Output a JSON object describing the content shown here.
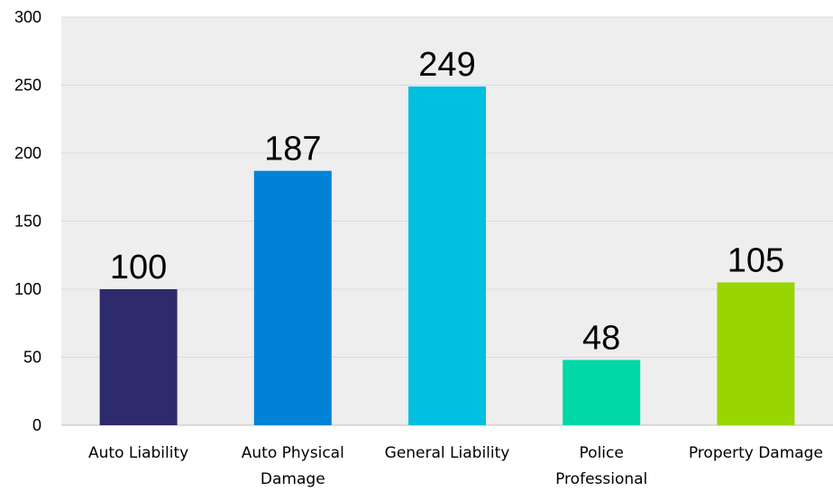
{
  "chart_data": {
    "type": "bar",
    "categories": [
      [
        "Auto Liability"
      ],
      [
        "Auto Physical",
        "Damage"
      ],
      [
        "General Liability"
      ],
      [
        "Police",
        "Professional"
      ],
      [
        "Property Damage"
      ]
    ],
    "values": [
      100,
      187,
      249,
      48,
      105
    ],
    "bar_colors": [
      "#2E2A6E",
      "#0083D6",
      "#00BFE0",
      "#00D8A8",
      "#99D500"
    ],
    "plot_background": "#EEEEEE",
    "ylim": [
      0,
      300
    ],
    "yticks": [
      0,
      50,
      100,
      150,
      200,
      250,
      300
    ],
    "grid": true,
    "title": "",
    "xlabel": "",
    "ylabel": ""
  }
}
